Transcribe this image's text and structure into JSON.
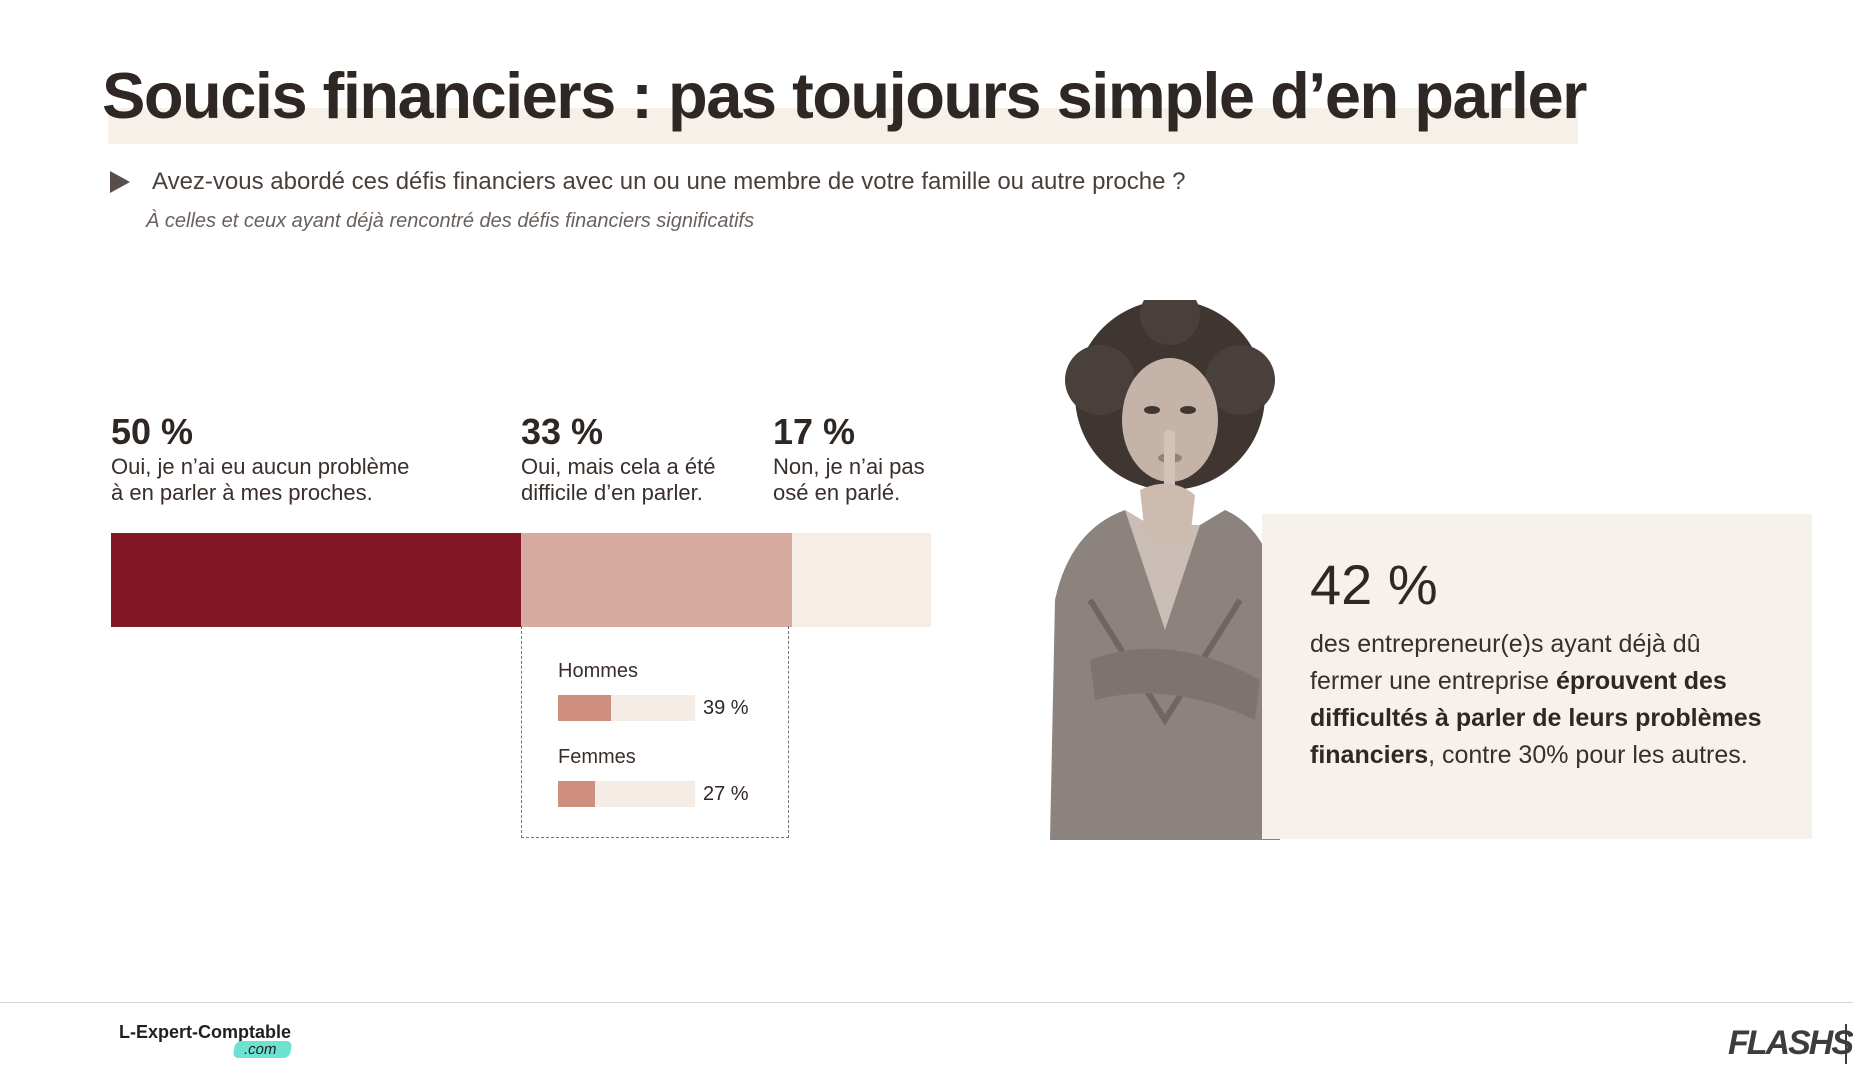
{
  "title": "Soucis financiers : pas toujours simple d’en parler",
  "question": "Avez-vous abordé ces défis financiers avec un ou une membre de votre famille ou autre proche ?",
  "subquestion": "À celles et ceux ayant déjà rencontré des défis financiers significatifs",
  "chart_data": [
    {
      "type": "bar",
      "orientation": "horizontal-stacked",
      "categories": [
        "Oui, je n’ai eu aucun problème à en parler à mes proches.",
        "Oui, mais cela a été difficile d’en parler.",
        "Non, je n’ai pas osé en parlé."
      ],
      "values": [
        50,
        33,
        17
      ],
      "value_labels": [
        "50 %",
        "33 %",
        "17 %"
      ],
      "colors": [
        "#821726",
        "#d8aba0",
        "#f6ede6"
      ],
      "ylim": [
        0,
        100
      ]
    },
    {
      "type": "bar",
      "orientation": "horizontal",
      "categories": [
        "Hommes",
        "Femmes"
      ],
      "values": [
        39,
        27
      ],
      "value_labels": [
        "39 %",
        "27 %"
      ],
      "colors": [
        "#cf8f80",
        "#cf8f80"
      ],
      "ylim": [
        0,
        100
      ]
    }
  ],
  "stats": [
    {
      "pct": "50 %",
      "label": "Oui, je n’ai eu aucun problème\nà en parler à mes proches."
    },
    {
      "pct": "33 %",
      "label": "Oui, mais cela a été\ndifficile d’en parler."
    },
    {
      "pct": "17 %",
      "label": "Non, je n’ai pas\nosé en parlé."
    }
  ],
  "breakdown": [
    {
      "label": "Hommes",
      "value": "39 %"
    },
    {
      "label": "Femmes",
      "value": "27 %"
    }
  ],
  "callout": {
    "big": "42 %",
    "text_pre": "des entrepreneur(e)s ayant déjà dû fermer une entreprise ",
    "text_bold": "éprouvent des difficultés à parler de leurs problèmes financiers",
    "text_post": ", contre 30% pour les autres."
  },
  "footer": {
    "brand": "L-Expert-Comptable",
    "brand_suffix": ".com",
    "logo": "FLASHS"
  },
  "icons": {
    "question": "play-triangle-icon"
  },
  "photo": "woman-shush-gesture-photo"
}
